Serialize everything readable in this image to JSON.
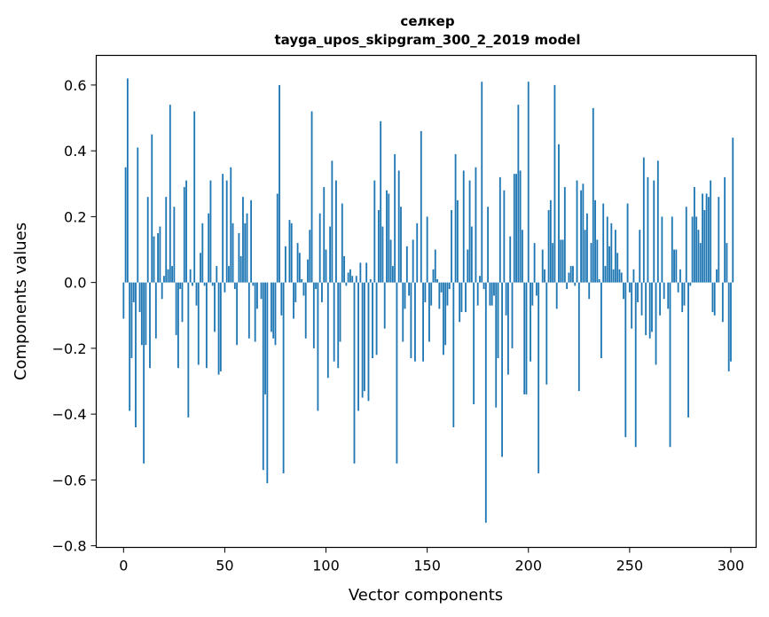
{
  "chart_data": {
    "type": "bar",
    "title": "селкер",
    "subtitle": "tayga_upos_skipgram_300_2_2019 model",
    "xlabel": "Vector components",
    "ylabel": "Components values",
    "xlim": [
      -13.5,
      312.5
    ],
    "ylim": [
      -0.805,
      0.69
    ],
    "xticks": [
      0,
      50,
      100,
      150,
      200,
      250,
      300
    ],
    "yticks": [
      -0.8,
      -0.6,
      -0.4,
      -0.2,
      0.0,
      0.2,
      0.4,
      0.6
    ],
    "ytick_labels": [
      "−0.8",
      "−0.6",
      "−0.4",
      "−0.2",
      "0.0",
      "0.2",
      "0.4",
      "0.6"
    ],
    "grid": false,
    "bar_color": "#1f77b4",
    "values": [
      -0.11,
      0.35,
      0.62,
      -0.39,
      -0.23,
      -0.06,
      -0.44,
      0.41,
      -0.09,
      -0.19,
      -0.55,
      -0.19,
      0.26,
      -0.26,
      0.45,
      0.14,
      -0.17,
      0.15,
      0.17,
      -0.05,
      0.02,
      0.26,
      0.04,
      0.54,
      0.05,
      0.23,
      -0.16,
      -0.26,
      -0.02,
      -0.12,
      0.29,
      0.31,
      -0.41,
      0.04,
      -0.01,
      0.52,
      -0.07,
      -0.25,
      0.09,
      0.18,
      -0.01,
      -0.26,
      0.21,
      0.31,
      -0.01,
      -0.15,
      0.05,
      -0.28,
      -0.27,
      0.33,
      -0.03,
      0.31,
      0.05,
      0.35,
      0.18,
      -0.02,
      -0.19,
      0.15,
      0.08,
      0.26,
      0.18,
      0.21,
      -0.17,
      0.25,
      -0.01,
      -0.18,
      -0.08,
      0.0,
      -0.05,
      -0.57,
      -0.34,
      -0.61,
      0.0,
      -0.15,
      -0.17,
      -0.19,
      0.27,
      0.6,
      -0.1,
      -0.58,
      0.11,
      0.0,
      0.19,
      0.18,
      -0.11,
      -0.06,
      0.12,
      0.09,
      0.01,
      -0.04,
      -0.17,
      0.07,
      0.16,
      0.52,
      -0.2,
      -0.02,
      -0.39,
      0.21,
      -0.06,
      0.29,
      0.1,
      -0.29,
      0.17,
      0.37,
      -0.24,
      0.31,
      -0.26,
      -0.18,
      0.24,
      0.08,
      -0.01,
      0.03,
      0.04,
      0.02,
      -0.55,
      0.02,
      -0.39,
      0.06,
      -0.35,
      -0.33,
      0.06,
      -0.36,
      0.01,
      -0.23,
      0.31,
      -0.22,
      0.22,
      0.49,
      0.17,
      -0.14,
      0.28,
      0.27,
      0.13,
      0.05,
      0.39,
      -0.55,
      0.34,
      0.23,
      -0.18,
      -0.08,
      0.11,
      -0.04,
      -0.23,
      0.13,
      -0.24,
      0.18,
      0.0,
      0.46,
      -0.24,
      -0.06,
      0.2,
      -0.18,
      -0.07,
      0.04,
      0.1,
      0.01,
      -0.08,
      -0.03,
      -0.22,
      -0.19,
      -0.07,
      -0.02,
      0.22,
      -0.44,
      0.39,
      0.25,
      -0.12,
      -0.09,
      0.34,
      -0.09,
      0.1,
      0.31,
      0.17,
      -0.37,
      0.35,
      -0.07,
      0.02,
      0.61,
      -0.02,
      -0.73,
      0.23,
      -0.07,
      -0.07,
      -0.04,
      -0.38,
      -0.23,
      0.32,
      -0.53,
      0.28,
      -0.1,
      -0.28,
      0.14,
      -0.2,
      0.33,
      0.33,
      0.54,
      0.34,
      0.16,
      -0.34,
      -0.34,
      0.61,
      -0.24,
      -0.07,
      0.12,
      -0.04,
      -0.58,
      0.0,
      0.1,
      0.04,
      -0.31,
      0.22,
      0.25,
      0.12,
      0.6,
      -0.08,
      0.42,
      0.13,
      0.13,
      0.29,
      -0.02,
      0.03,
      0.05,
      0.05,
      -0.01,
      0.31,
      -0.33,
      0.28,
      0.3,
      0.16,
      0.21,
      -0.05,
      0.12,
      0.53,
      0.25,
      0.13,
      0.01,
      -0.23,
      0.24,
      0.05,
      0.2,
      0.11,
      0.18,
      0.04,
      0.16,
      0.09,
      0.04,
      0.03,
      -0.05,
      -0.47,
      0.24,
      -0.03,
      -0.14,
      0.04,
      -0.5,
      -0.06,
      0.16,
      -0.1,
      0.38,
      -0.16,
      0.32,
      -0.17,
      -0.15,
      0.31,
      -0.25,
      0.37,
      -0.1,
      0.2,
      -0.05,
      0.0,
      -0.08,
      -0.5,
      0.2,
      0.1,
      0.1,
      -0.03,
      0.04,
      -0.09,
      -0.07,
      0.23,
      -0.41,
      -0.01,
      0.2,
      0.29,
      0.2,
      0.16,
      0.12,
      0.27,
      0.22,
      0.27,
      0.26,
      0.31,
      -0.09,
      -0.1,
      0.04,
      0.26,
      0.0,
      -0.12,
      0.32,
      0.12,
      -0.27,
      -0.24,
      0.44
    ]
  }
}
